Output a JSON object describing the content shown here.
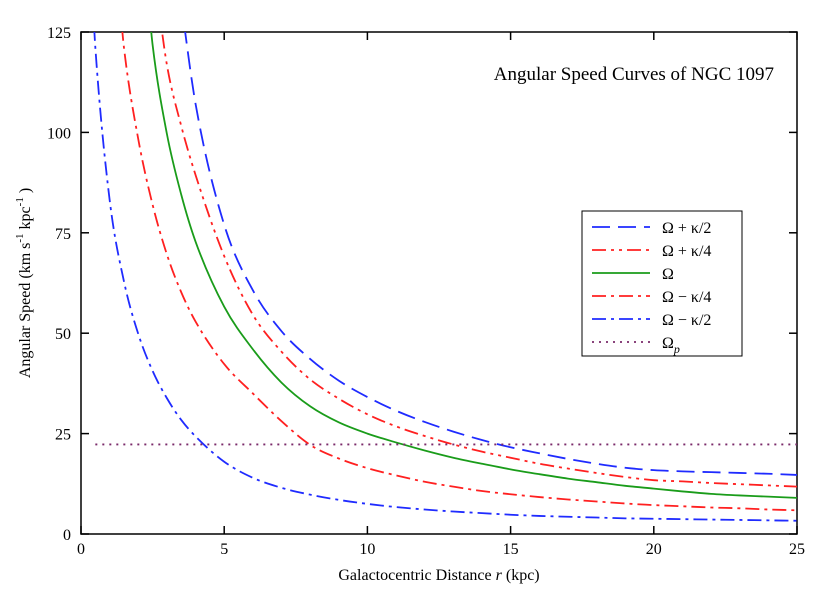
{
  "chart_data": {
    "type": "line",
    "title": "Angular Speed Curves of NGC 1097",
    "xlabel": "Galactocentric Distance r (kpc)",
    "xlabel_parts": {
      "before": "Galactocentric Distance ",
      "var": "r",
      "after": " (kpc)"
    },
    "ylabel": "Angular Speed (km s⁻¹ kpc⁻¹)",
    "ylabel_parts": {
      "main": "Angular Speed (km s",
      "sup1": "-1",
      "mid": " kpc",
      "sup2": "-1",
      "end": " )"
    },
    "xlim": [
      0,
      25
    ],
    "ylim": [
      0,
      125
    ],
    "xticks": [
      0,
      5,
      10,
      15,
      20,
      25
    ],
    "yticks": [
      0,
      25,
      50,
      75,
      100,
      125
    ],
    "legend_position": "right",
    "x": [
      0.5,
      1,
      1.5,
      2,
      2.5,
      3,
      3.5,
      4,
      5,
      6,
      7,
      8,
      9,
      10,
      11,
      12,
      13,
      14,
      15,
      16,
      17,
      18,
      19,
      20,
      21,
      22,
      23,
      24,
      25
    ],
    "series": [
      {
        "name": "Ω + κ/2",
        "label_main": "Ω + κ/2",
        "label_sub": "",
        "color": "#1f2bff",
        "dash": "18,8",
        "values": [
          null,
          null,
          null,
          null,
          null,
          null,
          null,
          107.1,
          77.0,
          60.7,
          50.5,
          43.6,
          38.2,
          34.1,
          30.7,
          27.9,
          25.5,
          23.4,
          21.6,
          20.1,
          18.7,
          17.5,
          16.5,
          15.9,
          15.6,
          15.4,
          15.2,
          15.0,
          14.7
        ]
      },
      {
        "name": "Ω + κ/4",
        "label_main": "Ω + κ/4",
        "label_sub": "",
        "color": "#ff2020",
        "dash": "14,5,3,5,3,5",
        "values": [
          null,
          null,
          null,
          null,
          null,
          116.8,
          101.6,
          89.4,
          69.2,
          54.6,
          45.4,
          38.5,
          33.7,
          29.8,
          26.8,
          24.4,
          22.3,
          20.5,
          19.0,
          17.5,
          16.3,
          15.2,
          14.2,
          13.4,
          13.1,
          12.7,
          12.4,
          12.1,
          11.8
        ]
      },
      {
        "name": "Ω",
        "label_main": "Ω",
        "label_sub": "",
        "color": "#1a9c1a",
        "dash": "",
        "values": [
          null,
          null,
          null,
          null,
          121.8,
          99.6,
          84.5,
          72.8,
          56.6,
          46.0,
          37.7,
          31.8,
          27.8,
          25.0,
          22.8,
          20.8,
          19.0,
          17.5,
          16.1,
          14.9,
          13.8,
          12.9,
          12.0,
          11.3,
          10.6,
          10.0,
          9.6,
          9.3,
          9.0
        ]
      },
      {
        "name": "Ω − κ/4",
        "label_main": "Ω − κ/4",
        "label_sub": "",
        "color": "#ff2020",
        "dash": "14,5,3,5",
        "values": [
          null,
          null,
          121.1,
          98.3,
          82.0,
          69.6,
          60.2,
          52.9,
          42.3,
          35.0,
          28.1,
          22.2,
          18.8,
          16.4,
          14.6,
          13.0,
          11.8,
          10.7,
          9.9,
          9.2,
          8.6,
          8.1,
          7.6,
          7.2,
          6.9,
          6.6,
          6.4,
          6.1,
          5.9
        ]
      },
      {
        "name": "Ω − κ/2",
        "label_main": "Ω − κ/2",
        "label_sub": "",
        "color": "#1f2bff",
        "dash": "14,5,3,5",
        "values": [
          121.2,
          83.2,
          62.9,
          49.8,
          40.6,
          33.8,
          28.4,
          24.3,
          18.0,
          14.0,
          11.5,
          9.8,
          8.5,
          7.5,
          6.7,
          6.1,
          5.6,
          5.2,
          4.8,
          4.5,
          4.3,
          4.1,
          3.9,
          3.8,
          3.7,
          3.6,
          3.5,
          3.4,
          3.3
        ]
      },
      {
        "name": "Ωp",
        "label_main": "Ω",
        "label_sub": "p",
        "color": "#7a2a6a",
        "dash": "2,5",
        "values": [
          22.3,
          22.3,
          22.3,
          22.3,
          22.3,
          22.3,
          22.3,
          22.3,
          22.3,
          22.3,
          22.3,
          22.3,
          22.3,
          22.3,
          22.3,
          22.3,
          22.3,
          22.3,
          22.3,
          22.3,
          22.3,
          22.3,
          22.3,
          22.3,
          22.3,
          22.3,
          22.3,
          22.3,
          22.3
        ]
      }
    ]
  }
}
